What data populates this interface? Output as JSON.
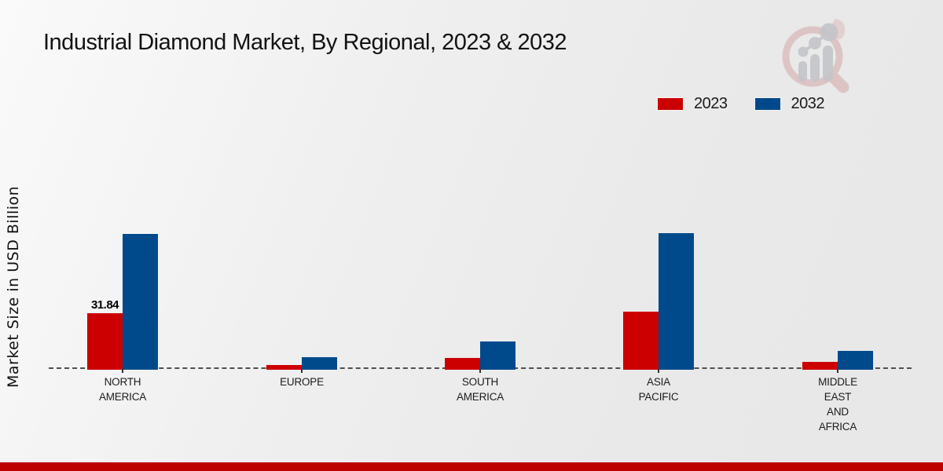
{
  "title": "Industrial Diamond Market, By Regional, 2023 & 2032",
  "ylabel": "Market Size in USD Billion",
  "colors": {
    "series_2023": "#cc0000",
    "series_2032": "#004a8c",
    "footer_strip": "#bd0000",
    "baseline": "#4f4f4f",
    "logo_ring": "#d5a7a7",
    "logo_bars": "#c4c5c9"
  },
  "legend": {
    "position": "top-right",
    "items": [
      "2023",
      "2032"
    ]
  },
  "chart_data": {
    "type": "bar",
    "title": "Industrial Diamond Market, By Regional, 2023 & 2032",
    "xlabel": "",
    "ylabel": "Market Size in USD Billion",
    "categories": [
      "North America",
      "Europe",
      "South America",
      "Asia Pacific",
      "Middle East and Africa"
    ],
    "category_label_lines": [
      [
        "NORTH",
        "AMERICA"
      ],
      [
        "EUROPE"
      ],
      [
        "SOUTH",
        "AMERICA"
      ],
      [
        "ASIA",
        "PACIFIC"
      ],
      [
        "MIDDLE",
        "EAST",
        "AND",
        "AFRICA"
      ]
    ],
    "series": [
      {
        "name": "2023",
        "color": "#cc0000",
        "values": [
          31.84,
          2.8,
          6.5,
          32.6,
          4.4
        ]
      },
      {
        "name": "2032",
        "color": "#004a8c",
        "values": [
          76.6,
          6.9,
          15.8,
          76.8,
          10.5
        ]
      }
    ],
    "data_labels": [
      {
        "series": "2023",
        "category": "North America",
        "text": "31.84"
      }
    ],
    "ylim": [
      0,
      80
    ],
    "grid": false,
    "baseline_style": "dashed",
    "legend_position": "top-right"
  }
}
